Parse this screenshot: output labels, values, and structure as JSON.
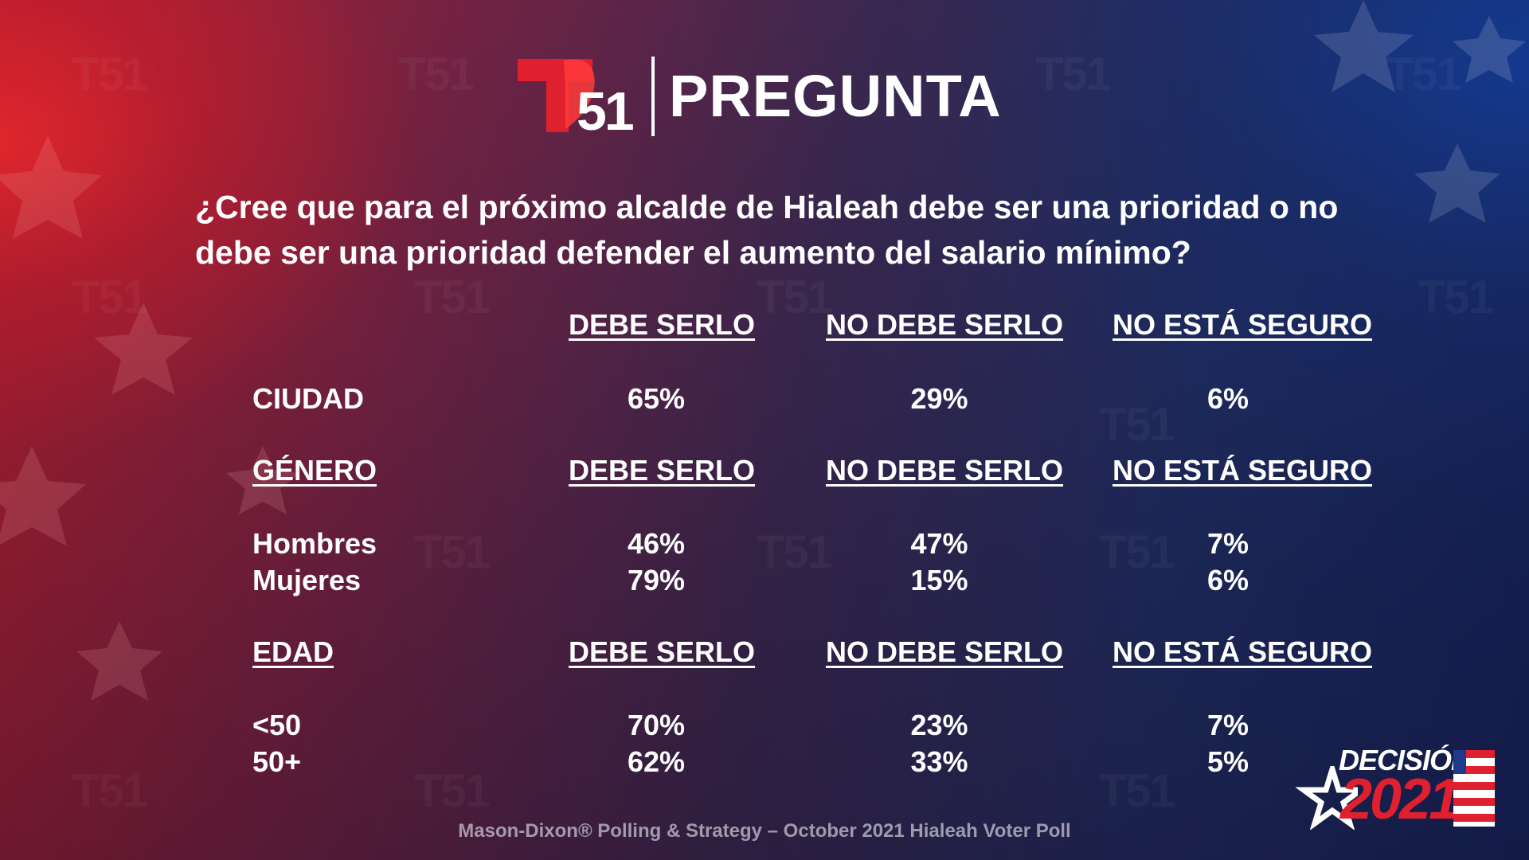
{
  "header": {
    "logo_number": "51",
    "title": "PREGUNTA"
  },
  "question": "¿Cree que para el próximo alcalde de Hialeah debe ser una prioridad o no debe ser una prioridad defender el aumento del salario mínimo?",
  "columns": [
    "DEBE SERLO",
    "NO DEBE SERLO",
    "NO ESTÁ SEGURO"
  ],
  "sections": [
    {
      "label": "",
      "rows": [
        {
          "label": "CIUDAD",
          "values": [
            "65%",
            "29%",
            "6%"
          ]
        }
      ]
    },
    {
      "label": "GÉNERO",
      "rows": [
        {
          "label": "Hombres",
          "values": [
            "46%",
            "47%",
            "7%"
          ]
        },
        {
          "label": "Mujeres",
          "values": [
            "79%",
            "15%",
            "6%"
          ]
        }
      ]
    },
    {
      "label": "EDAD",
      "rows": [
        {
          "label": "<50",
          "values": [
            "70%",
            "23%",
            "7%"
          ]
        },
        {
          "label": "50+",
          "values": [
            "62%",
            "33%",
            "5%"
          ]
        }
      ]
    }
  ],
  "footer": "Mason-Dixon® Polling & Strategy – October 2021 Hialeah Voter Poll",
  "badge": {
    "word": "DECISIÓN",
    "year": "2021"
  },
  "colors": {
    "brand_red": "#e0202e",
    "text": "#ffffff",
    "background_left": "#b21e2e",
    "background_right": "#12235c"
  }
}
